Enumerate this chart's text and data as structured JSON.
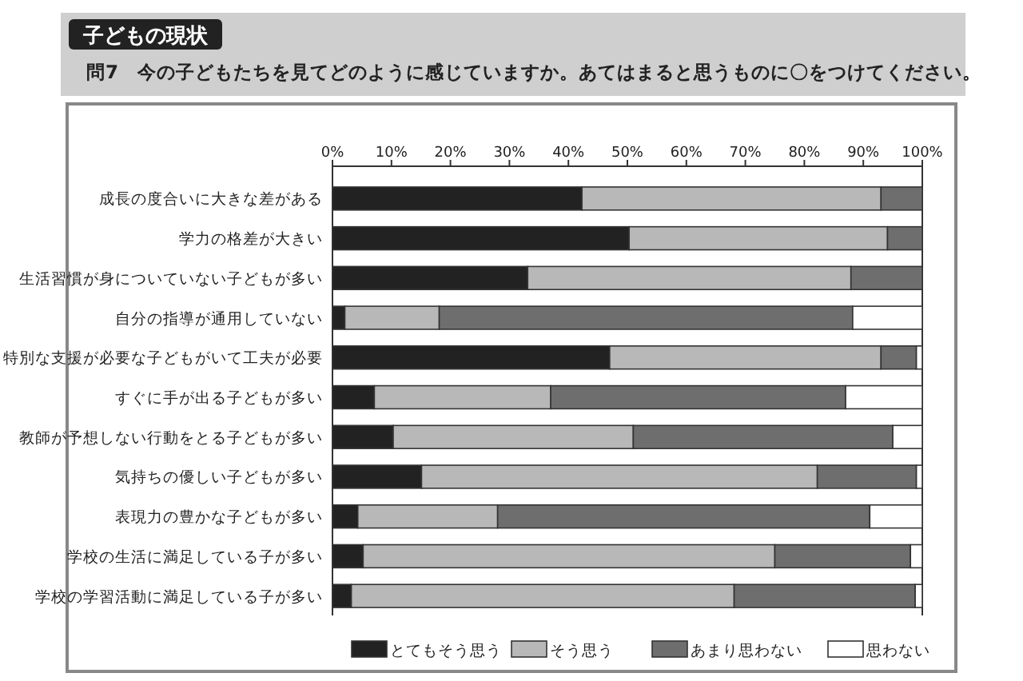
{
  "chart_data": {
    "type": "bar",
    "orientation": "horizontal",
    "stacked": true,
    "title": "子どもの現状",
    "subtitle": "問7　今の子どもたちを見てどのように感じていますか。あてはまると思うものに〇をつけてください。",
    "categories": [
      "成長の度合いに大きな差がある",
      "学力の格差が大きい",
      "生活習慣が身についていない子どもが多い",
      "自分の指導が通用していない",
      "特別な支援が必要な子どもがいて工夫が必要",
      "すぐに手が出る子どもが多い",
      "教師が予想しない行動をとる子どもが多い",
      "気持ちの優しい子どもが多い",
      "表現力の豊かな子どもが多い",
      "学校の生活に満足している子が多い",
      "学校の学習活動に満足している子が多い"
    ],
    "series": [
      {
        "name": "とてもそう思う",
        "color": "#222222",
        "values": [
          42.3,
          50.3,
          33.1,
          2.1,
          47.0,
          7.1,
          10.3,
          15.1,
          4.3,
          5.2,
          3.2
        ]
      },
      {
        "name": "そう思う",
        "color": "#b8b8b8",
        "values": [
          50.7,
          43.8,
          54.8,
          16.0,
          46.0,
          29.9,
          40.7,
          67.1,
          23.7,
          69.8,
          64.9
        ]
      },
      {
        "name": "あまり思わない",
        "color": "#6e6e6e",
        "values": [
          7.0,
          5.9,
          12.1,
          70.1,
          6.0,
          50.0,
          44.0,
          16.8,
          63.1,
          23.0,
          30.7
        ]
      },
      {
        "name": "思わない",
        "color": "#ffffff",
        "values": [
          0,
          0,
          0,
          11.8,
          1.0,
          13.0,
          5.0,
          1.0,
          8.9,
          2.0,
          1.2
        ]
      }
    ],
    "xlim": [
      0,
      100
    ],
    "xticks": [
      {
        "value": 0,
        "label": "0%"
      },
      {
        "value": 10,
        "label": "10%"
      },
      {
        "value": 20,
        "label": "20%"
      },
      {
        "value": 30,
        "label": "30%"
      },
      {
        "value": 40,
        "label": "40%"
      },
      {
        "value": 50,
        "label": "50%"
      },
      {
        "value": 60,
        "label": "60%"
      },
      {
        "value": 70,
        "label": "70%"
      },
      {
        "value": 80,
        "label": "80%"
      },
      {
        "value": 90,
        "label": "90%"
      },
      {
        "value": 100,
        "label": "100%"
      }
    ],
    "grid": false,
    "legend": "bottom"
  }
}
